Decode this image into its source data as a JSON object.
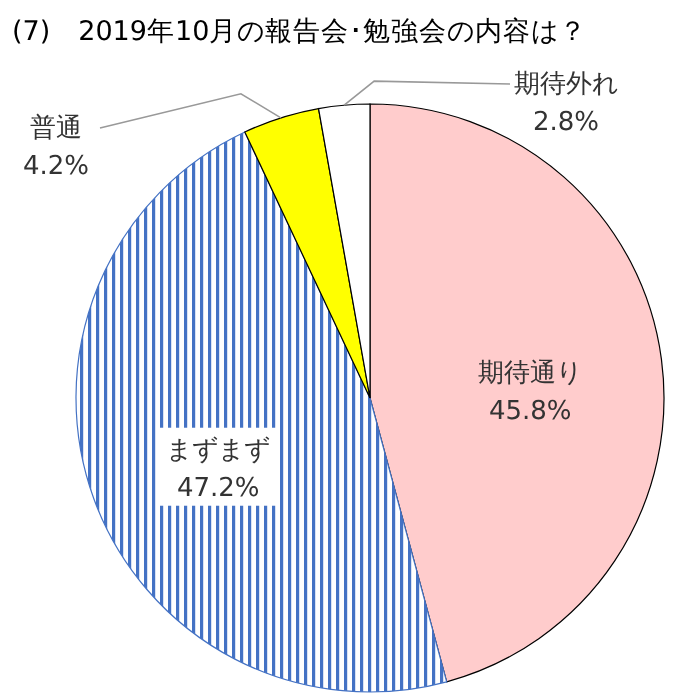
{
  "chart_data": {
    "type": "pie",
    "title": "(7)　2019年10月の報告会･勉強会の内容は？",
    "categories": [
      "期待通り",
      "まずまず",
      "普通",
      "期待外れ"
    ],
    "values": [
      45.8,
      47.2,
      4.2,
      2.8
    ],
    "value_labels": [
      "45.8%",
      "47.2%",
      "4.2%",
      "2.8%"
    ],
    "colors": [
      "#ffcccc",
      "#4472c4",
      "#ffff00",
      "#ffffff"
    ]
  }
}
